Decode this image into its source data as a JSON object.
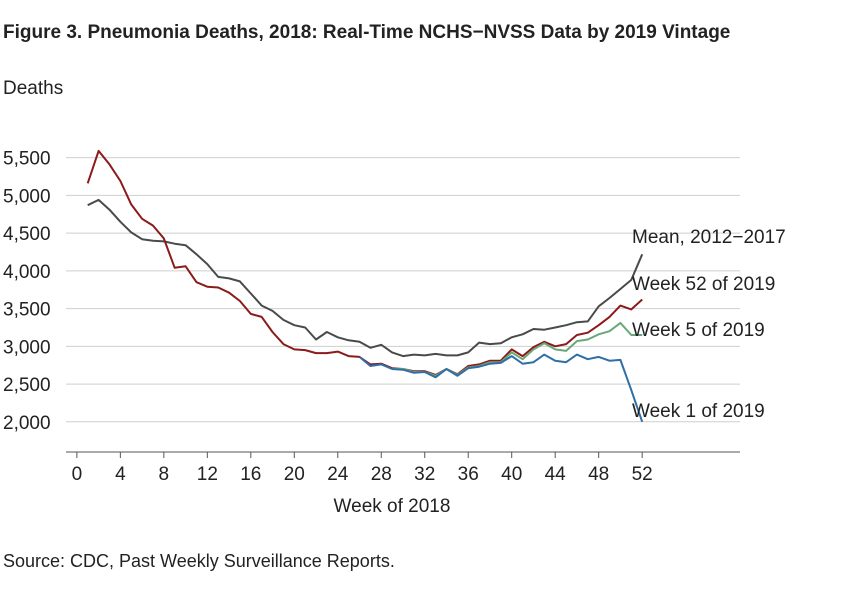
{
  "figure_title": "Figure 3.  Pneumonia Deaths, 2018: Real-Time NCHS−NVSS Data by 2019 Vintage",
  "source_note": "Source:  CDC, Past Weekly Surveillance Reports.",
  "chart_data": {
    "type": "line",
    "title": "Figure 3.  Pneumonia Deaths, 2018: Real-Time NCHS−NVSS Data by 2019 Vintage",
    "ylabel": "Deaths",
    "xlabel": "Week of 2018",
    "xlim": [
      -1,
      61
    ],
    "ylim": [
      1600,
      5800
    ],
    "x_ticks": [
      0,
      4,
      8,
      12,
      16,
      20,
      24,
      28,
      32,
      36,
      40,
      44,
      48,
      52
    ],
    "x_tick_labels": [
      "0",
      "4",
      "8",
      "12",
      "16",
      "20",
      "24",
      "28",
      "32",
      "36",
      "40",
      "44",
      "48",
      "52"
    ],
    "y_ticks": [
      2000,
      2500,
      3000,
      3500,
      4000,
      4500,
      5000,
      5500
    ],
    "y_tick_labels": [
      "2,000",
      "2,500",
      "3,000",
      "3,500",
      "4,000",
      "4,500",
      "5,000",
      "5,500"
    ],
    "grid": "horizontal",
    "x": [
      1,
      2,
      3,
      4,
      5,
      6,
      7,
      8,
      9,
      10,
      11,
      12,
      13,
      14,
      15,
      16,
      17,
      18,
      19,
      20,
      21,
      22,
      23,
      24,
      25,
      26,
      27,
      28,
      29,
      30,
      31,
      32,
      33,
      34,
      35,
      36,
      37,
      38,
      39,
      40,
      41,
      42,
      43,
      44,
      45,
      46,
      47,
      48,
      49,
      50,
      51,
      52
    ],
    "series": [
      {
        "name": "Mean, 2012−2017",
        "color": "#4a4a4a",
        "values": [
          4870,
          4940,
          4810,
          4650,
          4510,
          4420,
          4400,
          4390,
          4360,
          4340,
          4220,
          4090,
          3920,
          3900,
          3860,
          3700,
          3540,
          3470,
          3350,
          3280,
          3250,
          3090,
          3190,
          3120,
          3080,
          3060,
          2980,
          3020,
          2920,
          2870,
          2890,
          2880,
          2900,
          2880,
          2880,
          2920,
          3050,
          3030,
          3040,
          3120,
          3160,
          3230,
          3220,
          3250,
          3280,
          3320,
          3330,
          3530,
          3640,
          3760,
          3880,
          4220
        ]
      },
      {
        "name": "Week 52 of 2019",
        "color": "#8b1a1a",
        "values": [
          5160,
          5590,
          5410,
          5190,
          4880,
          4690,
          4600,
          4430,
          4040,
          4060,
          3850,
          3790,
          3780,
          3710,
          3600,
          3430,
          3390,
          3190,
          3030,
          2960,
          2950,
          2910,
          2910,
          2930,
          2870,
          2860,
          2760,
          2770,
          2710,
          2700,
          2670,
          2670,
          2620,
          2700,
          2630,
          2740,
          2760,
          2810,
          2810,
          2960,
          2870,
          2990,
          3060,
          3000,
          3030,
          3150,
          3180,
          3280,
          3390,
          3540,
          3490,
          3620
        ]
      },
      {
        "name": "Week 5 of 2019",
        "color": "#6aa87a",
        "values": [
          null,
          null,
          null,
          null,
          null,
          null,
          null,
          null,
          null,
          null,
          null,
          null,
          null,
          null,
          null,
          null,
          null,
          null,
          null,
          null,
          null,
          null,
          null,
          null,
          null,
          null,
          null,
          null,
          2700,
          2700,
          2660,
          2660,
          2610,
          2700,
          2620,
          2720,
          2740,
          2790,
          2790,
          2920,
          2830,
          2960,
          3040,
          2960,
          2940,
          3070,
          3090,
          3160,
          3200,
          3310,
          3150,
          3150
        ]
      },
      {
        "name": "Week 1 of 2019",
        "color": "#2f6fa8",
        "values": [
          null,
          null,
          null,
          null,
          null,
          null,
          null,
          null,
          null,
          null,
          null,
          null,
          null,
          null,
          null,
          null,
          null,
          null,
          null,
          null,
          null,
          null,
          null,
          null,
          null,
          2860,
          2740,
          2760,
          2700,
          2690,
          2650,
          2660,
          2590,
          2700,
          2610,
          2710,
          2730,
          2770,
          2780,
          2870,
          2770,
          2790,
          2890,
          2810,
          2790,
          2890,
          2830,
          2860,
          2810,
          2820,
          2420,
          2000
        ]
      }
    ]
  }
}
